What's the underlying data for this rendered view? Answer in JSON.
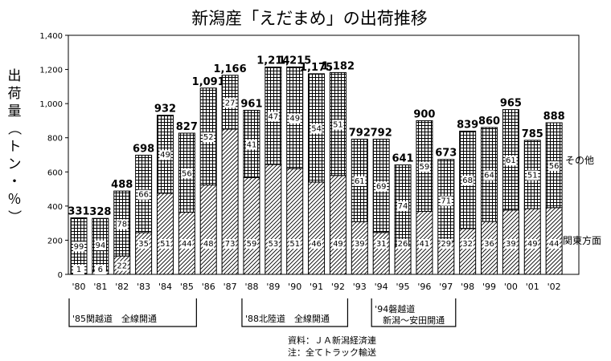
{
  "chart_data": {
    "type": "bar",
    "stacked": true,
    "title": "新潟産「えだまめ」の出荷推移",
    "ylabel_chars": [
      "出",
      "荷",
      "量",
      "（",
      "ト",
      "ン",
      "・",
      "％",
      "）"
    ],
    "ylim": [
      0,
      1400
    ],
    "yticks": [
      "0",
      "200",
      "400",
      "600",
      "800",
      "1,000",
      "1,200",
      "1,400"
    ],
    "ytick_values": [
      0,
      200,
      400,
      600,
      800,
      1000,
      1200,
      1400
    ],
    "categories": [
      "'80",
      "'81",
      "'82",
      "'83",
      "'84",
      "'85",
      "'86",
      "'87",
      "'88",
      "'89",
      "'90",
      "'91",
      "'92",
      "'93",
      "'94",
      "'95",
      "'96",
      "'97",
      "'98",
      "'99",
      "'00",
      "'01",
      "'02"
    ],
    "totals": [
      331,
      328,
      488,
      698,
      932,
      827,
      1091,
      1166,
      961,
      1214,
      1215,
      1175,
      1182,
      792,
      792,
      641,
      900,
      673,
      839,
      860,
      965,
      785,
      888
    ],
    "total_labels": [
      "331",
      "328",
      "488",
      "698",
      "932",
      "827",
      "1,091",
      "1,166",
      "961",
      "1,214",
      "1,215",
      "1,175",
      "1,182",
      "792",
      "792",
      "641",
      "900",
      "673",
      "839",
      "860",
      "965",
      "785",
      "888"
    ],
    "series": [
      {
        "name": "関東方面",
        "pattern": "diagonal",
        "percent_labels": [
          "1",
          "6",
          "22",
          "35",
          "51",
          "44",
          "48",
          "73",
          "59",
          "53",
          "51",
          "46",
          "49",
          "39",
          "31",
          "26",
          "41",
          "29",
          "32",
          "36",
          "39",
          "49",
          "44"
        ]
      },
      {
        "name": "その他",
        "pattern": "grid",
        "percent_labels": [
          "99",
          "94",
          "78",
          "66",
          "49",
          "56",
          "52",
          "27",
          "41",
          "47",
          "49",
          "54",
          "51",
          "61",
          "69",
          "74",
          "59",
          "71",
          "68",
          "64",
          "61",
          "51",
          "56"
        ]
      }
    ],
    "annotations": [
      {
        "text": "'85関越道　全線開通",
        "from_category": "'80",
        "to_category": "'85"
      },
      {
        "text": "'88北陸道　全線開通",
        "from_category": "'88",
        "to_category": "'92"
      },
      {
        "text": "'94磐越道",
        "text2": "新潟～安田開通",
        "from_category": "'94",
        "to_category": "'97"
      }
    ],
    "notes": [
      "資料：ＪＡ新潟経済連",
      "注：全てトラック輸送"
    ]
  }
}
